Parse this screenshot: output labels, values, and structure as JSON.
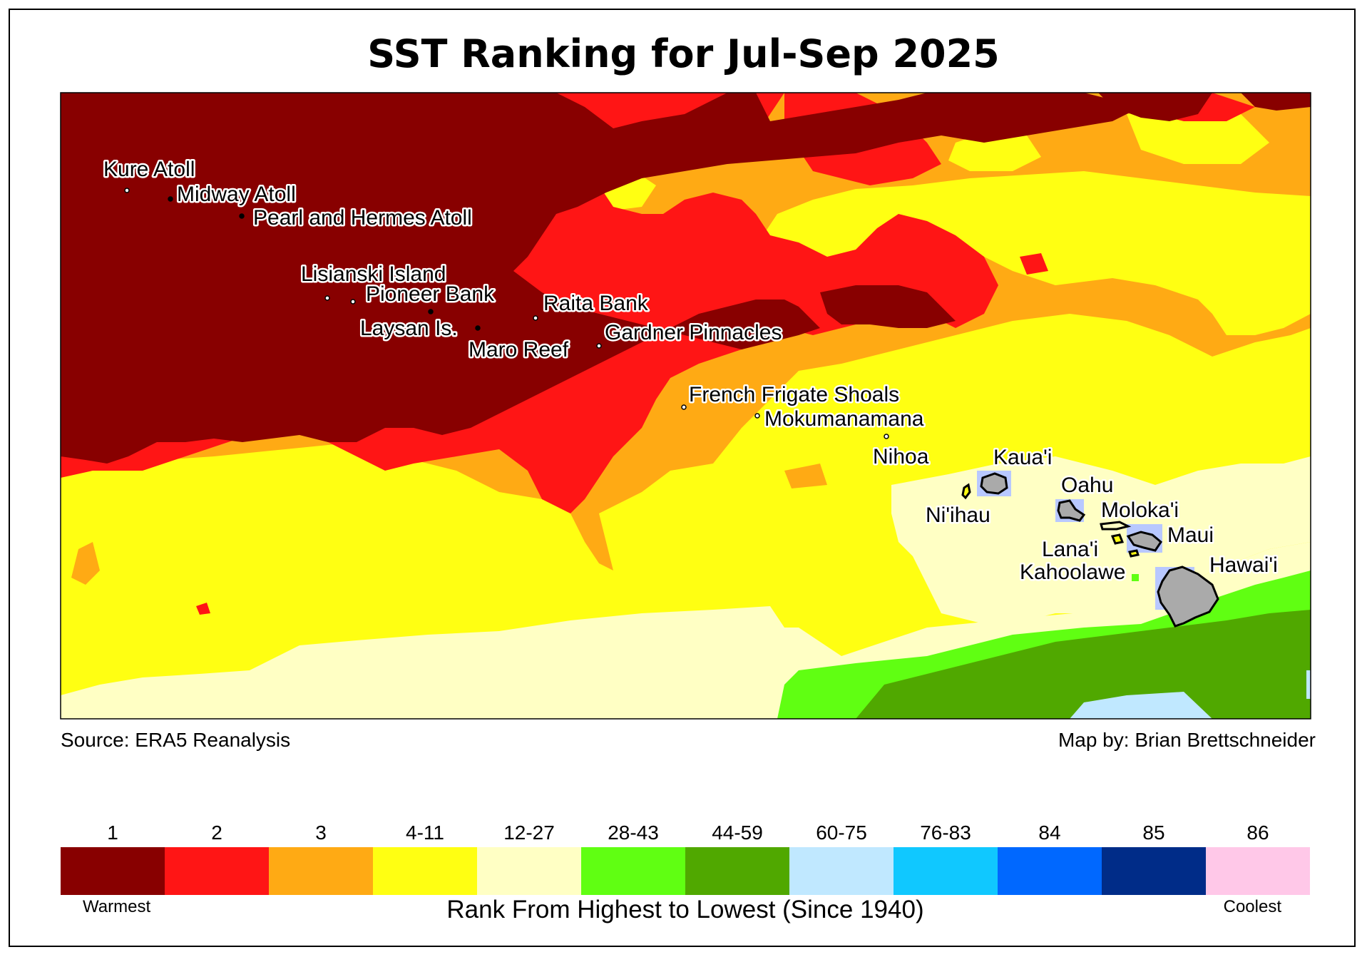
{
  "title": "SST Ranking for Jul-Sep 2025",
  "source": "Source: ERA5 Reanalysis",
  "credit": "Map by: Brian Brettschneider",
  "legend": {
    "title": "Rank From Highest to Lowest (Since 1940)",
    "warm_label": "Warmest",
    "cool_label": "Coolest",
    "classes": [
      {
        "label": "1",
        "color": "#880000"
      },
      {
        "label": "2",
        "color": "#ff1515"
      },
      {
        "label": "3",
        "color": "#ffaa14"
      },
      {
        "label": "4-11",
        "color": "#ffff12"
      },
      {
        "label": "12-27",
        "color": "#ffffc4"
      },
      {
        "label": "28-43",
        "color": "#60ff12"
      },
      {
        "label": "44-59",
        "color": "#50a800"
      },
      {
        "label": "60-75",
        "color": "#c0e8ff"
      },
      {
        "label": "76-83",
        "color": "#10c8ff"
      },
      {
        "label": "84",
        "color": "#0068ff"
      },
      {
        "label": "85",
        "color": "#002c88"
      },
      {
        "label": "86",
        "color": "#ffc8e8"
      }
    ]
  },
  "places": [
    "Kure Atoll",
    "Midway Atoll",
    "Pearl and Hermes Atoll",
    "Lisianski Island",
    "Pioneer Bank",
    "Laysan Is.",
    "Maro Reef",
    "Raita Bank",
    "Gardner Pinnacles",
    "French Frigate Shoals",
    "Mokumanamana",
    "Nihoa",
    "Kaua'i",
    "Ni'ihau",
    "Oahu",
    "Moloka'i",
    "Maui",
    "Lana'i",
    "Kahoolawe",
    "Hawai'i"
  ]
}
